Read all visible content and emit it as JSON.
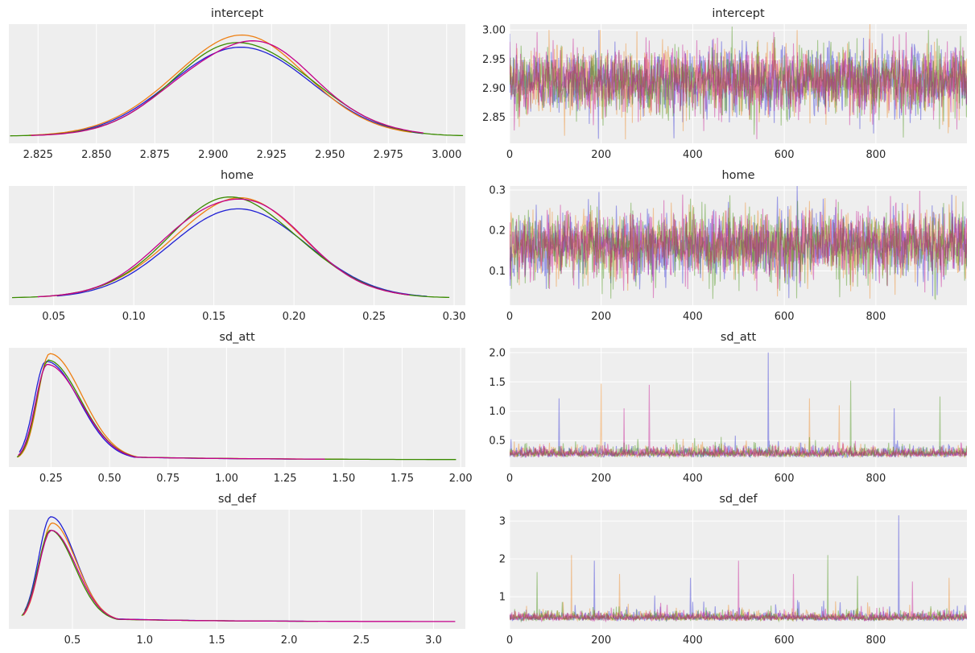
{
  "colors": {
    "background": "#eeeeee",
    "grid": "#ffffff",
    "chains": [
      "#1f1fd4",
      "#ee7f12",
      "#3a8b00",
      "#c4008a"
    ]
  },
  "chart_data": [
    {
      "type": "line",
      "panel": "density",
      "title": "intercept",
      "xlim": [
        2.8125,
        3.008
      ],
      "xticks": [
        "2.825",
        "2.850",
        "2.875",
        "2.900",
        "2.925",
        "2.950",
        "2.975",
        "3.000"
      ],
      "grid": true,
      "shape": {
        "peak": 2.913,
        "left_sd": 0.029,
        "right_sd": 0.029,
        "min": 2.82,
        "max": 3.0
      },
      "series": [
        {
          "peak": 2.912,
          "height": 0.86,
          "start": 2.822,
          "end": 2.99
        },
        {
          "peak": 2.911,
          "height": 0.92,
          "start": 2.821,
          "end": 2.985
        },
        {
          "peak": 2.913,
          "height": 0.88,
          "start": 2.813,
          "end": 3.007
        },
        {
          "peak": 2.914,
          "height": 0.89,
          "start": 2.822,
          "end": 2.99
        }
      ]
    },
    {
      "type": "line",
      "panel": "trace",
      "title": "intercept",
      "xlim": [
        0,
        999
      ],
      "ylim": [
        2.805,
        3.01
      ],
      "xticks": [
        "0",
        "200",
        "400",
        "600",
        "800"
      ],
      "yticks": [
        "2.85",
        "2.90",
        "2.95",
        "3.00"
      ],
      "grid": true,
      "draws": 1000,
      "center": 2.913,
      "spread": 0.029,
      "skew": 0,
      "floor": 2.81,
      "spikes": [
        [
          195,
          3.0
        ],
        [
          628,
          3.0
        ],
        [
          915,
          3.0
        ],
        [
          540,
          2.812
        ],
        [
          795,
          2.822
        ],
        [
          120,
          2.818
        ],
        [
          860,
          2.815
        ]
      ]
    },
    {
      "type": "line",
      "panel": "density",
      "title": "home",
      "xlim": [
        0.022,
        0.307
      ],
      "xticks": [
        "0.05",
        "0.10",
        "0.15",
        "0.20",
        "0.25",
        "0.30"
      ],
      "grid": true,
      "shape": {
        "peak": 0.164,
        "left_sd": 0.041,
        "right_sd": 0.041,
        "min": 0.04,
        "max": 0.3
      },
      "series": [
        {
          "peak": 0.166,
          "height": 0.86,
          "start": 0.052,
          "end": 0.283
        },
        {
          "peak": 0.164,
          "height": 0.92,
          "start": 0.043,
          "end": 0.27
        },
        {
          "peak": 0.163,
          "height": 0.93,
          "start": 0.024,
          "end": 0.297
        },
        {
          "peak": 0.163,
          "height": 0.95,
          "start": 0.04,
          "end": 0.272
        }
      ]
    },
    {
      "type": "line",
      "panel": "trace",
      "title": "home",
      "xlim": [
        0,
        999
      ],
      "ylim": [
        0.015,
        0.31
      ],
      "xticks": [
        "0",
        "200",
        "400",
        "600",
        "800"
      ],
      "yticks": [
        "0.1",
        "0.2",
        "0.3"
      ],
      "grid": true,
      "draws": 1000,
      "center": 0.164,
      "spread": 0.041,
      "skew": 0,
      "floor": 0.03,
      "spikes": [
        [
          195,
          0.295
        ],
        [
          960,
          0.265
        ],
        [
          930,
          0.03
        ],
        [
          540,
          0.05
        ],
        [
          80,
          0.055
        ]
      ]
    },
    {
      "type": "line",
      "panel": "density",
      "title": "sd_att",
      "xlim": [
        0.07,
        2.02
      ],
      "xticks": [
        "0.25",
        "0.50",
        "0.75",
        "1.00",
        "1.25",
        "1.50",
        "1.75",
        "2.00"
      ],
      "grid": true,
      "shape": {
        "peak": 0.235,
        "left_sd": 0.05,
        "right_sd": 0.14,
        "tail": 0.05,
        "min": 0.1,
        "max": 2.0
      },
      "series": [
        {
          "peak": 0.228,
          "height": 0.9,
          "start": 0.115,
          "end": 1.3
        },
        {
          "peak": 0.245,
          "height": 0.96,
          "start": 0.108,
          "end": 1.5
        },
        {
          "peak": 0.24,
          "height": 0.93,
          "start": 0.105,
          "end": 1.98
        },
        {
          "peak": 0.235,
          "height": 0.92,
          "start": 0.11,
          "end": 1.42
        }
      ]
    },
    {
      "type": "line",
      "panel": "trace",
      "title": "sd_att",
      "xlim": [
        0,
        999
      ],
      "ylim": [
        0.05,
        2.08
      ],
      "xticks": [
        "0",
        "200",
        "400",
        "600",
        "800"
      ],
      "yticks": [
        "0.5",
        "1.0",
        "1.5",
        "2.0"
      ],
      "grid": true,
      "draws": 1000,
      "center": 0.28,
      "spread": 0.09,
      "skew": 1.6,
      "floor": 0.12,
      "spikes": [
        [
          565,
          2.0
        ],
        [
          200,
          1.47
        ],
        [
          745,
          1.52
        ],
        [
          305,
          1.45
        ],
        [
          108,
          1.22
        ],
        [
          655,
          1.22
        ],
        [
          940,
          1.25
        ],
        [
          250,
          1.05
        ],
        [
          840,
          1.05
        ],
        [
          720,
          1.1
        ]
      ]
    },
    {
      "type": "line",
      "panel": "density",
      "title": "sd_def",
      "xlim": [
        0.06,
        3.22
      ],
      "xticks": [
        "0.5",
        "1.0",
        "1.5",
        "2.0",
        "2.5",
        "3.0"
      ],
      "grid": true,
      "shape": {
        "peak": 0.35,
        "left_sd": 0.085,
        "right_sd": 0.17,
        "tail": 0.05,
        "min": 0.15,
        "max": 3.2
      },
      "series": [
        {
          "peak": 0.35,
          "height": 0.96,
          "start": 0.17,
          "end": 2.1
        },
        {
          "peak": 0.36,
          "height": 0.89,
          "start": 0.16,
          "end": 1.8
        },
        {
          "peak": 0.35,
          "height": 0.85,
          "start": 0.15,
          "end": 2.2
        },
        {
          "peak": 0.355,
          "height": 0.88,
          "start": 0.16,
          "end": 3.15
        }
      ]
    },
    {
      "type": "line",
      "panel": "trace",
      "title": "sd_def",
      "xlim": [
        0,
        999
      ],
      "ylim": [
        0.15,
        3.3
      ],
      "xticks": [
        "0",
        "200",
        "400",
        "600",
        "800"
      ],
      "yticks": [
        "1",
        "2",
        "3"
      ],
      "grid": true,
      "draws": 1000,
      "center": 0.45,
      "spread": 0.13,
      "skew": 1.5,
      "floor": 0.2,
      "spikes": [
        [
          850,
          3.15
        ],
        [
          135,
          2.1
        ],
        [
          695,
          2.1
        ],
        [
          500,
          1.95
        ],
        [
          185,
          1.95
        ],
        [
          240,
          1.6
        ],
        [
          60,
          1.65
        ],
        [
          620,
          1.6
        ],
        [
          395,
          1.5
        ],
        [
          960,
          1.5
        ],
        [
          760,
          1.55
        ],
        [
          880,
          1.4
        ]
      ]
    }
  ]
}
